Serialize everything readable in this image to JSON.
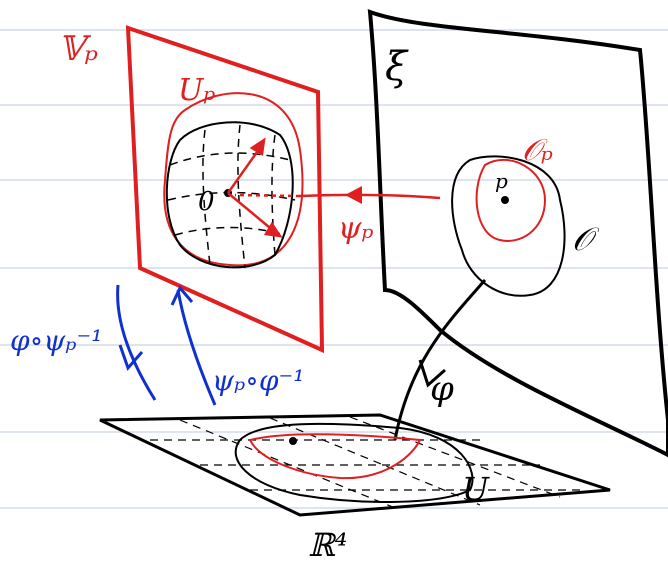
{
  "labels": {
    "tangent_space": "𝕍ₚ",
    "tangent_set": "Uₚ",
    "manifold": "ξ",
    "open_set_p": "𝒪ₚ",
    "point": "p",
    "origin": "0",
    "map_psi": "ψₚ",
    "open_set": "𝒪",
    "transition_1": "φ∘ψₚ⁻¹",
    "transition_2": "ψₚ∘φ⁻¹",
    "map_phi": "φ",
    "image_set": "U",
    "euclidean": "ℝ⁴"
  }
}
